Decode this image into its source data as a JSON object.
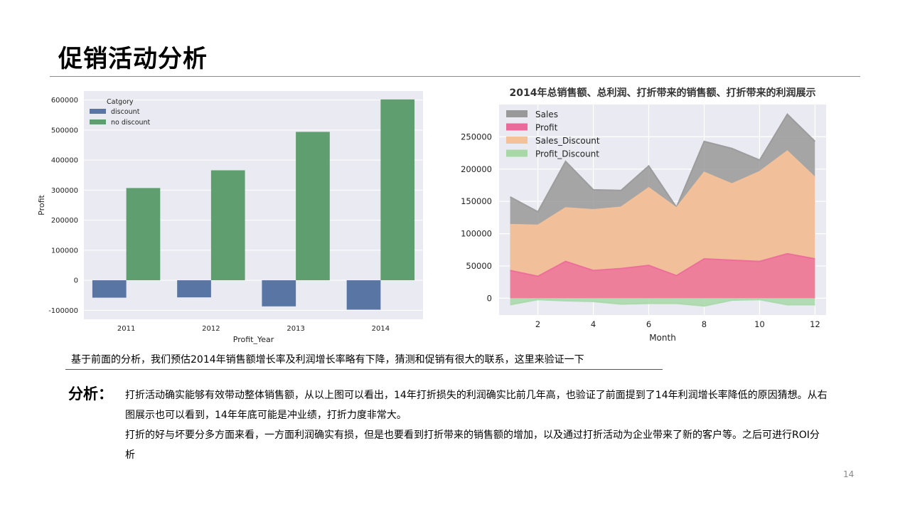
{
  "slide": {
    "title": "促销活动分析",
    "caption": "基于前面的分析，我们预估2014年销售额增长率及利润增长率略有下降，猜测和促销有很大的联系，这里来验证一下",
    "analysis_label": "分析：",
    "analysis_paragraphs": [
      "打折活动确实能够有效带动整体销售额，从以上图可以看出，14年打折损失的利润确实比前几年高，也验证了前面提到了14年利润增长率降低的原因猜想。从右图展示也可以看到，14年年底可能是冲业绩，打折力度非常大。",
      "打折的好与坏要分多方面来看，一方面利润确实有损，但是也要看到打折带来的销售额的增加，以及通过打折活动为企业带来了新的客户等。之后可进行ROI分析"
    ],
    "page_number": "14"
  },
  "chart_data": [
    {
      "type": "bar",
      "title": "",
      "xlabel": "Profit_Year",
      "ylabel": "Profit",
      "legend_title": "Catgory",
      "legend_position": "top-left",
      "categories": [
        "2011",
        "2012",
        "2013",
        "2014"
      ],
      "series": [
        {
          "name": "discount",
          "values": [
            -58000,
            -57000,
            -87000,
            -98000
          ],
          "color": "#5975a4"
        },
        {
          "name": "no discount",
          "values": [
            307000,
            366000,
            494000,
            602000
          ],
          "color": "#5f9e6e"
        }
      ],
      "ylim": [
        -130000,
        630000
      ],
      "yticks": [
        -100000,
        0,
        100000,
        200000,
        300000,
        400000,
        500000,
        600000
      ],
      "ytick_labels": [
        "-100000",
        "0",
        "100000",
        "200000",
        "300000",
        "400000",
        "500000",
        "600000"
      ],
      "grid": true
    },
    {
      "type": "area",
      "title": "2014年总销售额、总利润、打折带来的销售额、打折带来的利润展示",
      "xlabel": "Month",
      "ylabel": "",
      "legend_position": "top-left",
      "x": [
        1,
        2,
        3,
        4,
        5,
        6,
        7,
        8,
        9,
        10,
        11,
        12
      ],
      "series": [
        {
          "name": "Sales",
          "values": [
            157000,
            134000,
            212000,
            168000,
            167000,
            205000,
            141000,
            243000,
            232000,
            214000,
            285000,
            243000
          ],
          "color": "#999999"
        },
        {
          "name": "Sales_Discount",
          "values": [
            114000,
            113000,
            140000,
            137000,
            141000,
            171000,
            140000,
            195000,
            177000,
            196000,
            228000,
            187000
          ],
          "color": "#f4c199"
        },
        {
          "name": "Profit",
          "values": [
            43000,
            34000,
            57000,
            43000,
            46000,
            51000,
            35000,
            61000,
            59000,
            57000,
            69000,
            61000
          ],
          "color": "#ec6a9b"
        },
        {
          "name": "Profit_Discount",
          "values": [
            -10000,
            -2000,
            -4000,
            -5000,
            -9000,
            -8000,
            -8000,
            -12000,
            -3000,
            -2000,
            -10000,
            -10000
          ],
          "color": "#a8d8a8"
        }
      ],
      "legend_order": [
        "Sales",
        "Profit",
        "Sales_Discount",
        "Profit_Discount"
      ],
      "xlim": [
        0.6,
        12.4
      ],
      "ylim": [
        -26000,
        300000
      ],
      "xticks": [
        2,
        4,
        6,
        8,
        10,
        12
      ],
      "yticks": [
        0,
        50000,
        100000,
        150000,
        200000,
        250000
      ],
      "ytick_labels": [
        "0",
        "50000",
        "100000",
        "150000",
        "200000",
        "250000"
      ],
      "grid": true
    }
  ]
}
